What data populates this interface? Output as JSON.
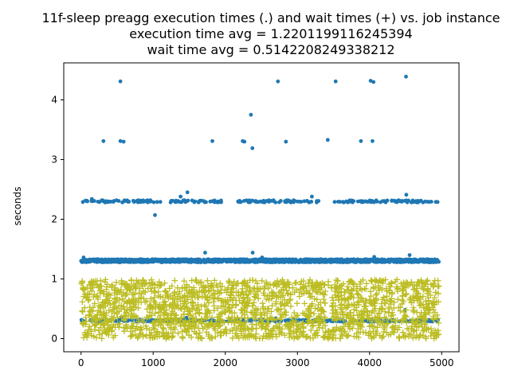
{
  "chart_data": {
    "type": "scatter",
    "title_lines": [
      "11f-sleep preagg execution times (.) and wait times (+) vs. job instance",
      "execution time avg = 1.2201199116245394",
      "wait time avg = 0.5142208249338212"
    ],
    "xlabel": "",
    "ylabel": "seconds",
    "xlim": [
      -240,
      5240
    ],
    "ylim": [
      -0.22,
      4.62
    ],
    "x_ticks": [
      0,
      1000,
      2000,
      3000,
      4000,
      5000
    ],
    "y_ticks": [
      0,
      1,
      2,
      3,
      4
    ],
    "grid": false,
    "legend": "none",
    "colors": {
      "execution": "#1f77b4",
      "wait": "#bcbd22"
    },
    "series": [
      {
        "key": "execution",
        "marker": "dot",
        "note": "~5000 job instances; most execution times near 1.3 s, a band near 2.3 s, a band near 0.3 s and a few outliers",
        "points": [
          [
            545,
            4.31
          ],
          [
            2730,
            4.31
          ],
          [
            3530,
            4.31
          ],
          [
            4015,
            4.32
          ],
          [
            4055,
            4.3
          ],
          [
            4505,
            4.39
          ],
          [
            2355,
            3.75
          ],
          [
            310,
            3.31
          ],
          [
            545,
            3.31
          ],
          [
            590,
            3.3
          ],
          [
            1820,
            3.31
          ],
          [
            2240,
            3.31
          ],
          [
            2265,
            3.3
          ],
          [
            2840,
            3.3
          ],
          [
            3420,
            3.33
          ],
          [
            3880,
            3.31
          ],
          [
            4040,
            3.31
          ],
          [
            2375,
            3.19
          ],
          [
            1475,
            2.45
          ],
          [
            4510,
            2.41
          ],
          [
            3200,
            2.38
          ],
          [
            1380,
            2.38
          ],
          [
            150,
            2.34
          ],
          [
            1025,
            2.07
          ],
          [
            1720,
            1.44
          ],
          [
            2380,
            1.44
          ],
          [
            4555,
            1.4
          ],
          [
            4065,
            1.37
          ],
          [
            35,
            1.36
          ],
          [
            2510,
            1.36
          ],
          [
            3510,
            0.3
          ],
          [
            4490,
            0.48
          ],
          [
            560,
            0.36
          ],
          [
            2700,
            0.34
          ],
          [
            1460,
            0.35
          ],
          [
            3300,
            0.35
          ]
        ],
        "bands": [
          {
            "y_center": 1.305,
            "y_spread": 0.025,
            "x_from": 0,
            "x_to": 4960,
            "count": 1400
          },
          {
            "y_center": 2.3,
            "y_spread": 0.018,
            "x_from": 0,
            "x_to": 4960,
            "count": 260,
            "gaps": [
              [
                1100,
                1200
              ],
              [
                1950,
                2150
              ],
              [
                3350,
                3450
              ]
            ]
          },
          {
            "y_center": 0.3,
            "y_spread": 0.015,
            "x_from": 0,
            "x_to": 4960,
            "count": 320
          }
        ]
      },
      {
        "key": "wait",
        "marker": "plus",
        "note": "wait times spread roughly uniformly between 0 and 1 s across all job instances",
        "range": {
          "x_from": 0,
          "x_to": 4960,
          "y_from": 0.0,
          "y_to": 0.99,
          "count": 1900
        },
        "gaps": [
          [
            3390,
            3480,
            0.15,
            0.82
          ]
        ]
      }
    ]
  }
}
